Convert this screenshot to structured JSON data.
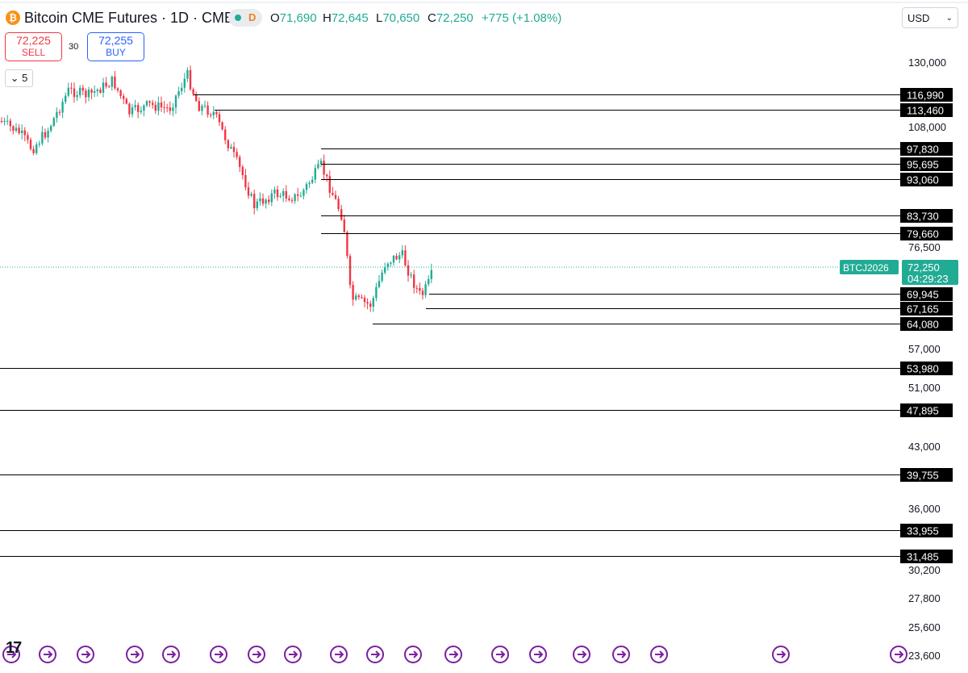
{
  "header": {
    "coin_glyph": "₿",
    "title": "Bitcoin CME Futures · 1D · CME",
    "market_status_letter": "D",
    "ohlc": [
      {
        "key": "O",
        "value": "71,690"
      },
      {
        "key": "H",
        "value": "72,645"
      },
      {
        "key": "L",
        "value": "70,650"
      },
      {
        "key": "C",
        "value": "72,250"
      }
    ],
    "change": "+775 (+1.08%)"
  },
  "trade": {
    "sell_price": "72,225",
    "sell_label": "SELL",
    "spread": "30",
    "buy_price": "72,255",
    "buy_label": "BUY"
  },
  "indicator_toggle": "⌄ 5",
  "currency": {
    "value": "USD",
    "chevron": "⌄"
  },
  "logo": "17",
  "colors": {
    "up": "#22ab94",
    "down": "#f23645",
    "accent": "#22ab94",
    "line": "#000000"
  },
  "chart_data": {
    "type": "candlestick",
    "ylim": [
      23600,
      130000
    ],
    "y_scale": "nonlinear",
    "y_ticks": [
      {
        "label": "130,000",
        "value": 130000
      },
      {
        "label": "108,000",
        "value": 108000
      },
      {
        "label": "76,500",
        "value": 76500
      },
      {
        "label": "57,000",
        "value": 57000
      },
      {
        "label": "51,000",
        "value": 51000
      },
      {
        "label": "43,000",
        "value": 43000
      },
      {
        "label": "36,000",
        "value": 36000
      },
      {
        "label": "30,200",
        "value": 30200
      },
      {
        "label": "27,800",
        "value": 27800
      },
      {
        "label": "25,600",
        "value": 25600
      },
      {
        "label": "23,600",
        "value": 23600
      }
    ],
    "horizontal_levels": [
      {
        "label": "116,990",
        "value": 116990,
        "full_width": false,
        "start": "left"
      },
      {
        "label": "113,460",
        "value": 113460,
        "full_width": false,
        "start": "left"
      },
      {
        "label": "97,830",
        "value": 97830,
        "full_width": false,
        "start": "mid"
      },
      {
        "label": "95,695",
        "value": 95695,
        "full_width": false,
        "start": "mid"
      },
      {
        "label": "93,060",
        "value": 93060,
        "full_width": false,
        "start": "mid"
      },
      {
        "label": "83,730",
        "value": 83730,
        "full_width": false,
        "start": "mid"
      },
      {
        "label": "79,660",
        "value": 79660,
        "full_width": false,
        "start": "mid"
      },
      {
        "label": "69,945",
        "value": 69945,
        "full_width": false,
        "start": "right"
      },
      {
        "label": "67,165",
        "value": 67165,
        "full_width": false,
        "start": "right"
      },
      {
        "label": "64,080",
        "value": 64080,
        "full_width": false,
        "start": "right"
      },
      {
        "label": "53,980",
        "value": 53980,
        "full_width": true
      },
      {
        "label": "47,895",
        "value": 47895,
        "full_width": true
      },
      {
        "label": "39,755",
        "value": 39755,
        "full_width": true
      },
      {
        "label": "33,955",
        "value": 33955,
        "full_width": true
      },
      {
        "label": "31,485",
        "value": 31485,
        "full_width": true
      }
    ],
    "current_price": {
      "label": "72,250",
      "value": 72250,
      "countdown": "04:29:23",
      "symbol": "BTCJ2026"
    },
    "events_count": 17
  }
}
